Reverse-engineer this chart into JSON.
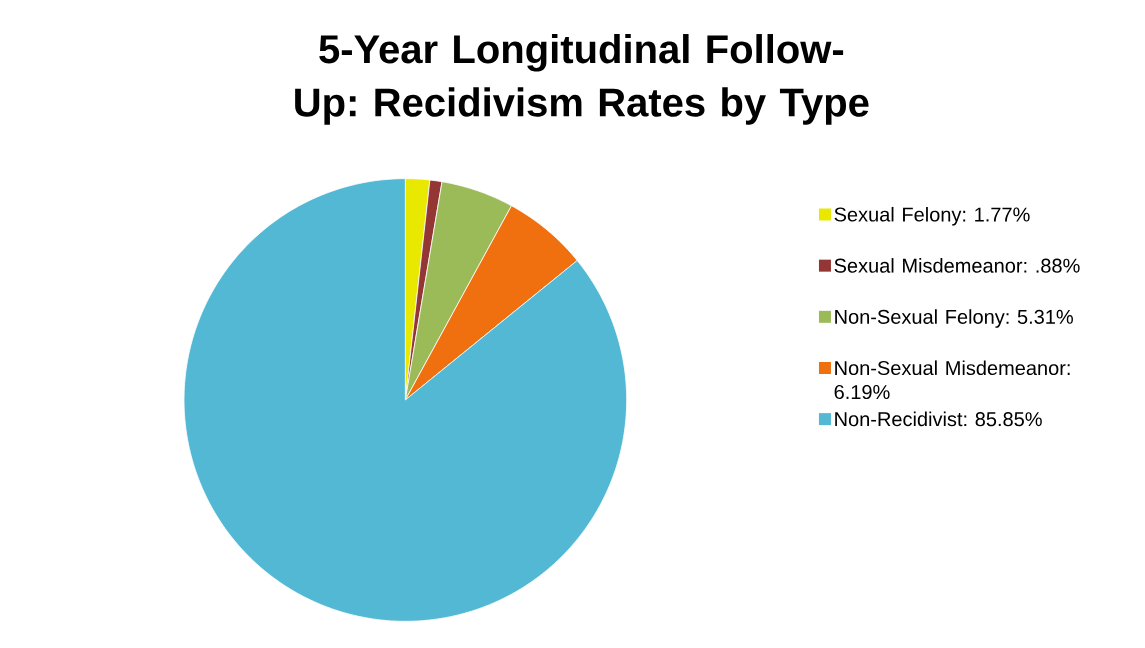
{
  "chart_data": {
    "type": "pie",
    "title": "5-Year Longitudinal Follow-Up: Recidivism Rates by Type",
    "categories": [
      "Sexual Felony: 1.77%",
      "Sexual Misdemeanor: .88%",
      "Non-Sexual Felony: 5.31%",
      "Non-Sexual Misdemeanor: 6.19%",
      "Non-Recidivist: 85.85%"
    ],
    "values": [
      1.77,
      0.88,
      5.31,
      6.19,
      85.85
    ],
    "colors": [
      "#e8e800",
      "#943634",
      "#9bbb59",
      "#f07010",
      "#53b8d4"
    ],
    "legend": "right"
  }
}
